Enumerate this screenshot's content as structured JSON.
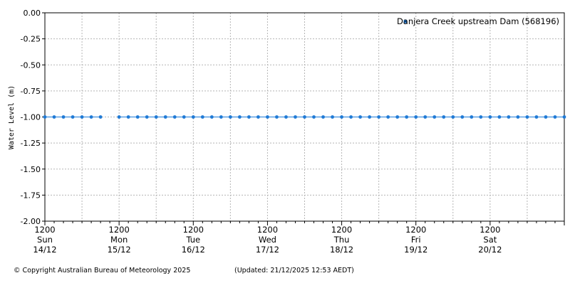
{
  "chart_data": {
    "type": "scatter",
    "series": [
      {
        "name": "Danjera Creek upstream Dam (568196)",
        "color": "#1f7ad6",
        "start": "2025-12-14T12:00",
        "interval_hours": 3,
        "values": [
          -1.0,
          -1.0,
          -1.0,
          -1.0,
          -1.0,
          -1.0,
          -1.0,
          null,
          -1.0,
          -1.0,
          -1.0,
          -1.0,
          -1.0,
          -1.0,
          -1.0,
          -1.0,
          -1.0,
          -1.0,
          -1.0,
          -1.0,
          -1.0,
          -1.0,
          -1.0,
          -1.0,
          -1.0,
          -1.0,
          -1.0,
          -1.0,
          -1.0,
          -1.0,
          -1.0,
          -1.0,
          -1.0,
          -1.0,
          -1.0,
          -1.0,
          -1.0,
          -1.0,
          -1.0,
          -1.0,
          -1.0,
          -1.0,
          -1.0,
          -1.0,
          -1.0,
          -1.0,
          -1.0,
          -1.0,
          -1.0,
          -1.0,
          -1.0,
          -1.0,
          -1.0,
          -1.0,
          -1.0,
          -1.0,
          -1.0
        ]
      }
    ],
    "ylabel": "Water Level (m)",
    "ylim": [
      -2.0,
      0.0
    ],
    "yticks": [
      "0.00",
      "-0.25",
      "-0.50",
      "-0.75",
      "-1.00",
      "-1.25",
      "-1.50",
      "-1.75",
      "-2.00"
    ],
    "xlim": [
      "2025-12-14T12:00",
      "2025-12-21T12:00"
    ],
    "xticks": [
      {
        "time": "1200",
        "day": "Sun",
        "date": "14/12"
      },
      {
        "time": "1200",
        "day": "Mon",
        "date": "15/12"
      },
      {
        "time": "1200",
        "day": "Tue",
        "date": "16/12"
      },
      {
        "time": "1200",
        "day": "Wed",
        "date": "17/12"
      },
      {
        "time": "1200",
        "day": "Thu",
        "date": "18/12"
      },
      {
        "time": "1200",
        "day": "Fri",
        "date": "19/12"
      },
      {
        "time": "1200",
        "day": "Sat",
        "date": "20/12"
      }
    ],
    "grid": true,
    "legend_position": "top-right"
  },
  "footer": {
    "copyright": "© Copyright Australian Bureau of Meteorology 2025",
    "updated": "(Updated: 21/12/2025 12:53 AEDT)"
  }
}
